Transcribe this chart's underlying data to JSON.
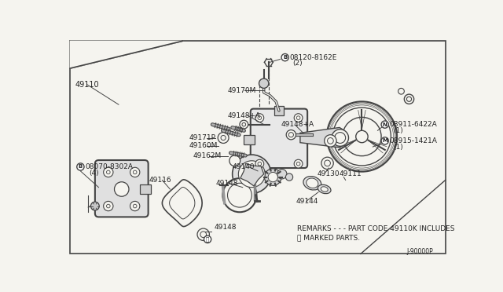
{
  "bg_color": "#f5f4ef",
  "line_color": "#444444",
  "text_color": "#222222",
  "fig_width": 6.4,
  "fig_height": 3.72,
  "dpi": 100,
  "remarks_line1": "REMARKS - - - PART CODE 49110K INCLUDES",
  "remarks_line2": "ⓐ MARKED PARTS.",
  "diagram_id": "J-90000P"
}
